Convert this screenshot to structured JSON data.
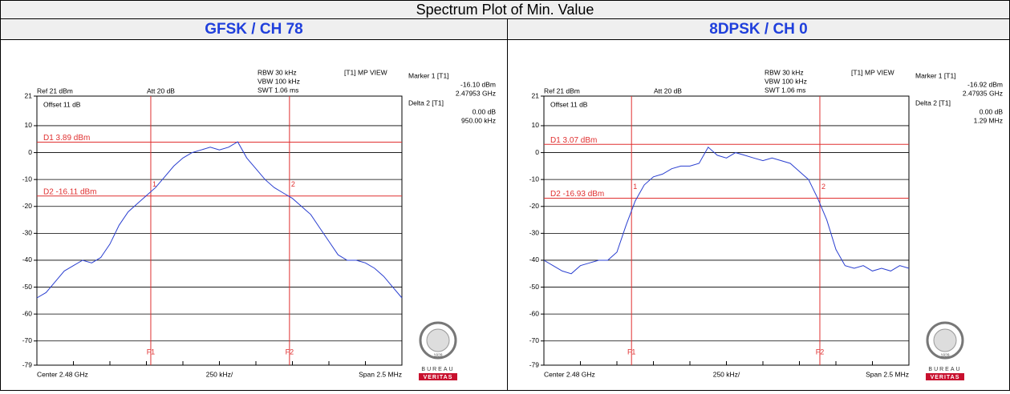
{
  "header": {
    "title": "Spectrum Plot of Min. Value"
  },
  "chart_data": [
    {
      "type": "line",
      "title": "GFSK / CH 78",
      "color": "#2a3fd0",
      "grid": true,
      "ylim": [
        -79,
        21
      ],
      "yticks": [
        21,
        10,
        0,
        -10,
        -20,
        -30,
        -40,
        -50,
        -60,
        -70,
        -79
      ],
      "xlim": [
        2.47875,
        2.48125
      ],
      "values": [
        -54,
        -52,
        -48,
        -44,
        -42,
        -40,
        -41,
        -39,
        -34,
        -27,
        -22,
        -19,
        -16,
        -13,
        -9,
        -5,
        -2,
        0,
        1,
        2,
        1,
        2,
        4,
        -2,
        -6,
        -10,
        -13,
        -15,
        -17,
        -20,
        -23,
        -28,
        -33,
        -38,
        -40,
        -40,
        -41,
        -43,
        -46,
        -50,
        -54
      ],
      "settings": [
        "RBW 30 kHz",
        "VBW 100 kHz",
        "SWT 1.06 ms"
      ],
      "view": "[T1] MP VIEW",
      "marker": {
        "label": "Marker 1 [T1]",
        "level": "-16.10 dBm",
        "freq": "2.47953 GHz"
      },
      "delta": {
        "label": "Delta 2 [T1]",
        "level": "0.00 dB",
        "freq": "950.00 kHz"
      },
      "ref": "Ref 21 dBm",
      "att": "Att 20 dB",
      "offset": "Offset 11 dB",
      "display_lines": [
        {
          "label": "D1 3.89 dBm",
          "value": 3.89
        },
        {
          "label": "D2 -16.11 dBm",
          "value": -16.11
        }
      ],
      "frequency_lines": [
        {
          "label": "F1",
          "value": 2.47953
        },
        {
          "label": "F2",
          "value": 2.48048
        }
      ],
      "markers": [
        {
          "label": "1",
          "x": 2.47953,
          "y": -16.1
        },
        {
          "label": "2",
          "x": 2.48048,
          "y": -16.1
        }
      ],
      "center": "Center 2.48 GHz",
      "per_div": "250 kHz/",
      "span": "Span 2.5 MHz",
      "logo": [
        "BUREAU",
        "VERITAS",
        "1828"
      ]
    },
    {
      "type": "line",
      "title": "8DPSK / CH 0",
      "color": "#2a3fd0",
      "grid": true,
      "ylim": [
        -79,
        21
      ],
      "yticks": [
        21,
        10,
        0,
        -10,
        -20,
        -30,
        -40,
        -50,
        -60,
        -70,
        -79
      ],
      "xlim": [
        2.47875,
        2.48125
      ],
      "values": [
        -40,
        -42,
        -44,
        -45,
        -42,
        -41,
        -40,
        -40,
        -37,
        -27,
        -18,
        -12,
        -9,
        -8,
        -6,
        -5,
        -5,
        -4,
        2,
        -1,
        -2,
        0,
        -1,
        -2,
        -3,
        -2,
        -3,
        -4,
        -7,
        -10,
        -17,
        -25,
        -36,
        -42,
        -43,
        -42,
        -44,
        -43,
        -44,
        -42,
        -43
      ],
      "settings": [
        "RBW 30 kHz",
        "VBW 100 kHz",
        "SWT 1.06 ms"
      ],
      "view": "[T1] MP VIEW",
      "marker": {
        "label": "Marker 1 [T1]",
        "level": "-16.92 dBm",
        "freq": "2.47935 GHz"
      },
      "delta": {
        "label": "Delta 2 [T1]",
        "level": "0.00 dB",
        "freq": "1.29 MHz"
      },
      "ref": "Ref 21 dBm",
      "att": "Att 20 dB",
      "offset": "Offset 11 dB",
      "display_lines": [
        {
          "label": "D1 3.07 dBm",
          "value": 3.07
        },
        {
          "label": "D2 -16.93 dBm",
          "value": -16.93
        }
      ],
      "frequency_lines": [
        {
          "label": "F1",
          "value": 2.47935
        },
        {
          "label": "F2",
          "value": 2.48064
        }
      ],
      "markers": [
        {
          "label": "1",
          "x": 2.47935,
          "y": -16.92
        },
        {
          "label": "2",
          "x": 2.48064,
          "y": -16.92
        }
      ],
      "center": "Center 2.48 GHz",
      "per_div": "250 kHz/",
      "span": "Span 2.5 MHz",
      "logo": [
        "BUREAU",
        "VERITAS",
        "1828"
      ]
    }
  ]
}
